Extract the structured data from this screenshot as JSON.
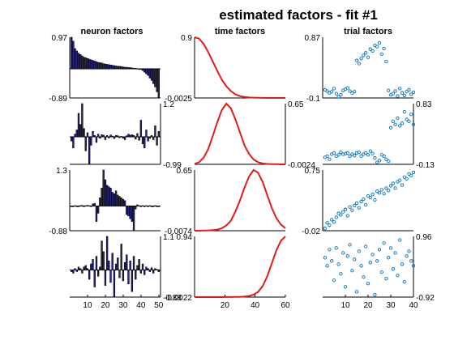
{
  "title": "estimated factors - fit #1",
  "colors": {
    "bars": "#2a2a80",
    "curves": "#e31a1c",
    "points": "#0072bd"
  },
  "chart_data": [
    {
      "type": "bar",
      "column": "neuron",
      "title": "neuron factors",
      "ylim": [
        -0.89,
        0.97
      ],
      "ytick_labels": [
        "0.97",
        "-0.89"
      ],
      "ytick_side": "left",
      "x": [
        1,
        2,
        3,
        4,
        5,
        6,
        7,
        8,
        9,
        10,
        11,
        12,
        13,
        14,
        15,
        16,
        17,
        18,
        19,
        20,
        21,
        22,
        23,
        24,
        25,
        26,
        27,
        28,
        29,
        30,
        31,
        32,
        33,
        34,
        35,
        36,
        37,
        38,
        39,
        40,
        41,
        42,
        43,
        44,
        45,
        46,
        47,
        48,
        49,
        50
      ],
      "values": [
        0.97,
        0.85,
        0.62,
        0.55,
        0.48,
        0.44,
        0.4,
        0.36,
        0.34,
        0.32,
        0.3,
        0.28,
        0.26,
        0.24,
        0.22,
        0.2,
        0.19,
        0.18,
        0.16,
        0.15,
        0.14,
        0.13,
        0.12,
        0.11,
        0.1,
        0.09,
        0.08,
        0.08,
        0.07,
        0.06,
        0.05,
        0.05,
        0.04,
        0.04,
        0.03,
        0.02,
        0.02,
        0.01,
        0.0,
        0.0,
        -0.05,
        -0.1,
        -0.15,
        -0.2,
        -0.28,
        -0.35,
        -0.45,
        -0.55,
        -0.7,
        -0.89
      ]
    },
    {
      "type": "line",
      "column": "time",
      "title": "time factors",
      "ylim": [
        -0.0025,
        0.9
      ],
      "ytick_labels": [
        "0.9",
        "-0.0025"
      ],
      "ytick_side": "left",
      "x": [
        0,
        3,
        6,
        9,
        12,
        15,
        18,
        21,
        24,
        27,
        30,
        33,
        36,
        39,
        42,
        45,
        48,
        51,
        54,
        57,
        60
      ],
      "values": [
        0.9,
        0.88,
        0.8,
        0.68,
        0.54,
        0.4,
        0.27,
        0.17,
        0.1,
        0.05,
        0.025,
        0.012,
        0.005,
        0.002,
        0.0,
        -0.001,
        -0.002,
        -0.0025,
        -0.0025,
        -0.0025,
        -0.0025
      ]
    },
    {
      "type": "scatter",
      "column": "trial",
      "title": "trial factors",
      "ylim": [
        -0.1,
        0.87
      ],
      "ytick_labels": [
        "0.87",
        "-0.1"
      ],
      "ytick_side": "left",
      "x": [
        1,
        2,
        3,
        4,
        5,
        6,
        7,
        8,
        9,
        10,
        11,
        12,
        13,
        14,
        15,
        16,
        17,
        18,
        19,
        20,
        21,
        22,
        23,
        24,
        25,
        26,
        27,
        28,
        29,
        30,
        31,
        32,
        33,
        34,
        35,
        36,
        37,
        38,
        39,
        40
      ],
      "values": [
        0.03,
        0.01,
        -0.02,
        0.0,
        0.05,
        -0.03,
        -0.08,
        -0.05,
        0.02,
        0.04,
        0.06,
        0.01,
        -0.02,
        0.0,
        0.5,
        0.45,
        0.53,
        0.58,
        0.62,
        0.55,
        0.68,
        0.65,
        0.74,
        0.72,
        0.78,
        0.6,
        0.69,
        0.48,
        0.02,
        -0.05,
        -0.03,
        0.01,
        -0.07,
        0.05,
        -0.02,
        -0.06,
        0.0,
        0.03,
        -0.04,
        -0.01
      ]
    },
    {
      "type": "bar",
      "column": "neuron",
      "ylim": [
        -0.99,
        1.2
      ],
      "ytick_labels": [
        "1.2",
        "-0.99"
      ],
      "ytick_side": "right",
      "x": [
        1,
        2,
        3,
        4,
        5,
        6,
        7,
        8,
        9,
        10,
        11,
        12,
        13,
        14,
        15,
        16,
        17,
        18,
        19,
        20,
        21,
        22,
        23,
        24,
        25,
        26,
        27,
        28,
        29,
        30,
        31,
        32,
        33,
        34,
        35,
        36,
        37,
        38,
        39,
        40,
        41,
        42,
        43,
        44,
        45,
        46,
        47,
        48,
        49,
        50
      ],
      "values": [
        -0.15,
        -0.4,
        0.1,
        0.25,
        0.85,
        0.45,
        1.2,
        0.3,
        -0.5,
        0.15,
        -0.99,
        -0.3,
        0.2,
        0.05,
        -0.2,
        0.1,
        -0.05,
        0.08,
        0.06,
        -0.1,
        0.05,
        -0.04,
        0.07,
        0.03,
        -0.06,
        0.05,
        0.04,
        -0.03,
        0.02,
        -0.05,
        -0.1,
        0.04,
        0.1,
        0.06,
        0.08,
        0.05,
        -0.08,
        0.12,
        -0.12,
        0.6,
        -0.25,
        -0.4,
        0.25,
        -0.15,
        -0.05,
        0.05,
        -0.1,
        0.4,
        -0.3,
        0.2
      ]
    },
    {
      "type": "line",
      "column": "time",
      "ylim": [
        -0.0024,
        0.65
      ],
      "ytick_labels": [
        "0.65",
        "-0.0024"
      ],
      "ytick_side": "right",
      "x": [
        0,
        3,
        6,
        9,
        12,
        15,
        18,
        21,
        24,
        27,
        30,
        33,
        36,
        39,
        42,
        45,
        48,
        51,
        54,
        57,
        60
      ],
      "values": [
        0.003,
        0.02,
        0.07,
        0.16,
        0.3,
        0.45,
        0.58,
        0.65,
        0.6,
        0.48,
        0.34,
        0.2,
        0.11,
        0.05,
        0.02,
        0.007,
        0.002,
        0.0,
        -0.001,
        -0.002,
        -0.0024
      ]
    },
    {
      "type": "scatter",
      "column": "trial",
      "ylim": [
        -0.13,
        0.83
      ],
      "ytick_labels": [
        "0.83",
        "-0.13"
      ],
      "ytick_side": "right",
      "x": [
        1,
        2,
        3,
        4,
        5,
        6,
        7,
        8,
        9,
        10,
        11,
        12,
        13,
        14,
        15,
        16,
        17,
        18,
        19,
        20,
        21,
        22,
        23,
        24,
        25,
        26,
        27,
        28,
        29,
        30,
        31,
        32,
        33,
        34,
        35,
        36,
        37,
        38,
        39,
        40
      ],
      "values": [
        -0.02,
        0.0,
        -0.05,
        0.03,
        0.05,
        0.0,
        0.02,
        0.06,
        0.03,
        0.04,
        0.05,
        0.0,
        0.03,
        0.01,
        0.05,
        0.06,
        0.0,
        0.03,
        0.05,
        0.02,
        0.08,
        0.04,
        -0.03,
        -0.1,
        -0.07,
        0.02,
        0.0,
        -0.05,
        -0.08,
        0.45,
        0.55,
        0.5,
        0.6,
        0.48,
        0.52,
        0.7,
        0.58,
        0.55,
        0.66,
        0.5
      ]
    },
    {
      "type": "bar",
      "column": "neuron",
      "ylim": [
        -0.88,
        1.3
      ],
      "ytick_labels": [
        "1.3",
        "-0.88"
      ],
      "ytick_side": "left",
      "x": [
        1,
        2,
        3,
        4,
        5,
        6,
        7,
        8,
        9,
        10,
        11,
        12,
        13,
        14,
        15,
        16,
        17,
        18,
        19,
        20,
        21,
        22,
        23,
        24,
        25,
        26,
        27,
        28,
        29,
        30,
        31,
        32,
        33,
        34,
        35,
        36,
        37,
        38,
        39,
        40,
        41,
        42,
        43,
        44,
        45,
        46,
        47,
        48,
        49,
        50
      ],
      "values": [
        0.0,
        0.0,
        0.02,
        0.0,
        0.0,
        0.02,
        0.03,
        0.0,
        0.02,
        0.03,
        0.02,
        0.0,
        0.08,
        0.1,
        -0.55,
        -0.25,
        0.3,
        0.65,
        1.3,
        0.95,
        0.75,
        0.7,
        0.65,
        0.5,
        0.45,
        0.55,
        0.4,
        0.35,
        0.3,
        0.25,
        0.2,
        -0.3,
        -0.35,
        -0.45,
        -0.55,
        -0.88,
        -0.1,
        0.05,
        0.02,
        0.0,
        0.02,
        0.0,
        0.02,
        0.0,
        0.02,
        0.0,
        0.0,
        0.02,
        0.0,
        0.0
      ]
    },
    {
      "type": "line",
      "column": "time",
      "ylim": [
        -0.0074,
        0.65
      ],
      "ytick_labels": [
        "0.65",
        "-0.0074"
      ],
      "ytick_side": "left",
      "x": [
        0,
        3,
        6,
        9,
        12,
        15,
        18,
        21,
        24,
        27,
        30,
        33,
        36,
        39,
        42,
        45,
        48,
        51,
        54,
        57,
        60
      ],
      "values": [
        -0.0074,
        -0.007,
        -0.006,
        -0.004,
        0.0,
        0.005,
        0.02,
        0.05,
        0.1,
        0.2,
        0.32,
        0.46,
        0.58,
        0.65,
        0.62,
        0.52,
        0.38,
        0.24,
        0.13,
        0.06,
        0.02
      ]
    },
    {
      "type": "scatter",
      "column": "trial",
      "ylim": [
        -0.02,
        0.75
      ],
      "ytick_labels": [
        "0.75",
        "-0.02"
      ],
      "ytick_side": "left",
      "x": [
        1,
        2,
        3,
        4,
        5,
        6,
        7,
        8,
        9,
        10,
        11,
        12,
        13,
        14,
        15,
        16,
        17,
        18,
        19,
        20,
        21,
        22,
        23,
        24,
        25,
        26,
        27,
        28,
        29,
        30,
        31,
        32,
        33,
        34,
        35,
        36,
        37,
        38,
        39,
        40
      ],
      "values": [
        0.01,
        0.08,
        0.05,
        0.12,
        0.09,
        0.15,
        0.2,
        0.18,
        0.22,
        0.25,
        0.17,
        0.28,
        0.24,
        0.3,
        0.33,
        0.27,
        0.35,
        0.38,
        0.31,
        0.42,
        0.4,
        0.44,
        0.37,
        0.48,
        0.46,
        0.5,
        0.45,
        0.52,
        0.49,
        0.55,
        0.58,
        0.52,
        0.6,
        0.62,
        0.56,
        0.66,
        0.64,
        0.7,
        0.68,
        0.72
      ]
    },
    {
      "type": "bar",
      "column": "neuron",
      "ylim": [
        -0.88,
        1.1
      ],
      "ytick_labels": [
        "1.1",
        "-0.88"
      ],
      "ytick_side": "right",
      "xticks": [
        10,
        20,
        30,
        40,
        50
      ],
      "x": [
        1,
        2,
        3,
        4,
        5,
        6,
        7,
        8,
        9,
        10,
        11,
        12,
        13,
        14,
        15,
        16,
        17,
        18,
        19,
        20,
        21,
        22,
        23,
        24,
        25,
        26,
        27,
        28,
        29,
        30,
        31,
        32,
        33,
        34,
        35,
        36,
        37,
        38,
        39,
        40,
        41,
        42,
        43,
        44,
        45,
        46,
        47,
        48,
        49,
        50
      ],
      "values": [
        -0.05,
        -0.1,
        0.05,
        -0.05,
        0.1,
        0.05,
        -0.1,
        0.1,
        0.15,
        0.05,
        -0.3,
        0.2,
        0.35,
        -0.55,
        0.45,
        -0.2,
        0.1,
        0.95,
        0.6,
        -0.5,
        1.1,
        0.3,
        -0.4,
        0.55,
        -0.88,
        0.2,
        0.4,
        -0.25,
        0.85,
        -0.35,
        0.25,
        0.5,
        -0.45,
        0.3,
        -0.7,
        0.45,
        -0.3,
        0.15,
        0.35,
        -0.1,
        0.2,
        -0.15,
        0.1,
        0.05,
        -0.05,
        0.08,
        -0.1,
        0.05,
        0.02,
        -0.05
      ]
    },
    {
      "type": "line",
      "column": "time",
      "ylim": [
        -0.0022,
        0.94
      ],
      "ytick_labels": [
        "0.94",
        "-0.0022"
      ],
      "ytick_side": "left",
      "xticks": [
        20,
        40,
        60
      ],
      "x": [
        0,
        3,
        6,
        9,
        12,
        15,
        18,
        21,
        24,
        27,
        30,
        33,
        36,
        39,
        42,
        45,
        48,
        51,
        54,
        57,
        60
      ],
      "values": [
        -0.0022,
        -0.0022,
        -0.0022,
        -0.0022,
        -0.0022,
        -0.002,
        -0.0018,
        -0.0015,
        -0.001,
        0.0,
        0.002,
        0.006,
        0.015,
        0.035,
        0.08,
        0.17,
        0.32,
        0.52,
        0.72,
        0.87,
        0.94
      ]
    },
    {
      "type": "scatter",
      "column": "trial",
      "ylim": [
        -0.92,
        0.96
      ],
      "ytick_labels": [
        "0.96",
        "-0.92"
      ],
      "ytick_side": "right",
      "xticks": [
        10,
        20,
        30,
        40
      ],
      "x": [
        1,
        2,
        3,
        4,
        5,
        6,
        7,
        8,
        9,
        10,
        11,
        12,
        13,
        14,
        15,
        16,
        17,
        18,
        19,
        20,
        21,
        22,
        23,
        24,
        25,
        26,
        27,
        28,
        29,
        30,
        31,
        32,
        33,
        34,
        35,
        36,
        37,
        38,
        39,
        40
      ],
      "values": [
        0.3,
        0.05,
        0.55,
        0.2,
        -0.4,
        0.6,
        0.1,
        -0.2,
        0.45,
        -0.6,
        0.35,
        0.7,
        -0.1,
        0.25,
        -0.75,
        0.5,
        0.05,
        -0.3,
        0.65,
        -0.5,
        0.15,
        0.4,
        -0.85,
        0.2,
        0.55,
        -0.15,
        0.75,
        -0.35,
        0.3,
        0.6,
        -0.05,
        0.45,
        -0.25,
        0.85,
        0.1,
        -0.45,
        0.35,
        0.5,
        0.2,
        0.05
      ]
    }
  ]
}
